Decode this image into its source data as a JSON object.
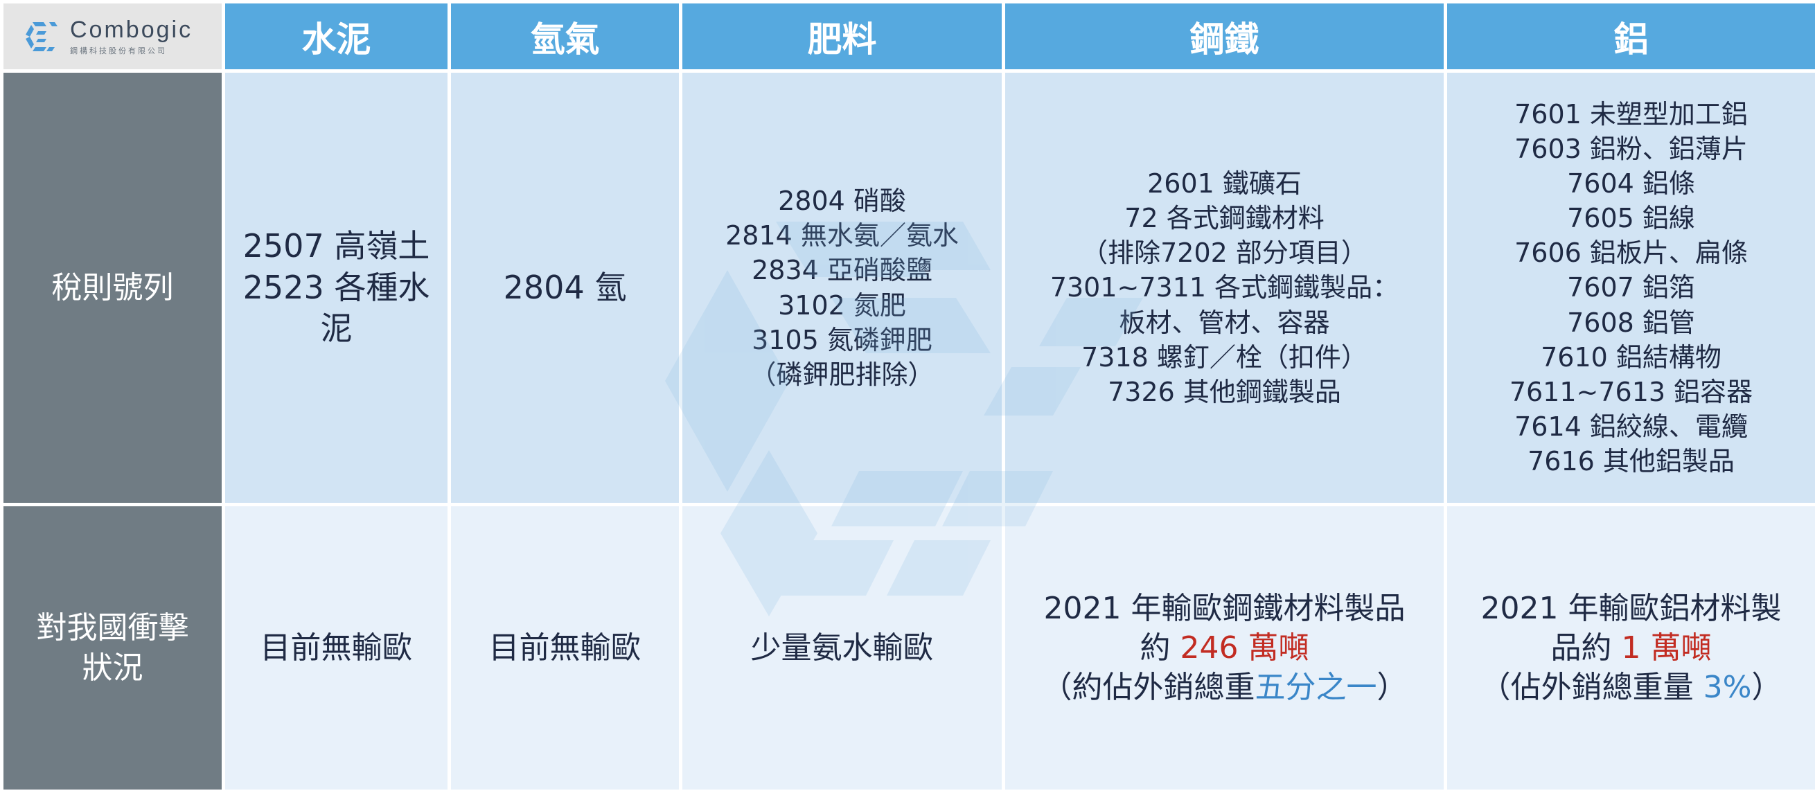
{
  "logo": {
    "name": "Combogic",
    "subtitle": "鋼構科技股份有限公司"
  },
  "columns": [
    "水泥",
    "氫氣",
    "肥料",
    "鋼鐵",
    "鋁"
  ],
  "rows": {
    "tariff": {
      "label": "稅則號列",
      "cells": {
        "cement": [
          "2507 高嶺土",
          "2523 各種水",
          "泥"
        ],
        "hydrogen": [
          "2804 氫"
        ],
        "fertilizer": [
          "2804 硝酸",
          "2814 無水氨／氨水",
          "2834 亞硝酸鹽",
          "3102 氮肥",
          "3105 氮磷鉀肥",
          "（磷鉀肥排除）"
        ],
        "steel": [
          "2601 鐵礦石",
          "72 各式鋼鐵材料",
          "（排除7202 部分項目）",
          "7301~7311 各式鋼鐵製品：",
          "板材、管材、容器",
          "7318 螺釘／栓（扣件）",
          "7326 其他鋼鐵製品"
        ],
        "aluminum": [
          "7601 未塑型加工鋁",
          "7603 鋁粉、鋁薄片",
          "7604 鋁條",
          "7605 鋁線",
          "7606 鋁板片、扁條",
          "7607 鋁箔",
          "7608 鋁管",
          "7610 鋁結構物",
          "7611~7613 鋁容器",
          "7614 鋁絞線、電纜",
          "7616 其他鋁製品"
        ]
      }
    },
    "impact": {
      "label_lines": [
        "對我國衝擊",
        "狀況"
      ],
      "cells": {
        "cement": "目前無輸歐",
        "hydrogen": "目前無輸歐",
        "fertilizer": "少量氨水輸歐",
        "steel": {
          "line1": "2021 年輸歐鋼鐵材料製品",
          "line2_pre": "約 ",
          "line2_hl": "246 萬噸",
          "line3_pre": "（約佔外銷總重",
          "line3_hl": "五分之一",
          "line3_post": "）"
        },
        "aluminum": {
          "line1": "2021 年輸歐鋁材料製",
          "line2_pre": "品約 ",
          "line2_hl": "1 萬噸",
          "line3_pre": "（佔外銷總重量 ",
          "line3_hl": "3%",
          "line3_post": "）"
        }
      }
    }
  },
  "colors": {
    "header_bg": "#56a9df",
    "label_bg": "#707c84",
    "tariff_bg": "#d2e4f4",
    "impact_bg": "#e8f1fa",
    "highlight_red": "#c22c22",
    "highlight_blue": "#3a86c8"
  }
}
